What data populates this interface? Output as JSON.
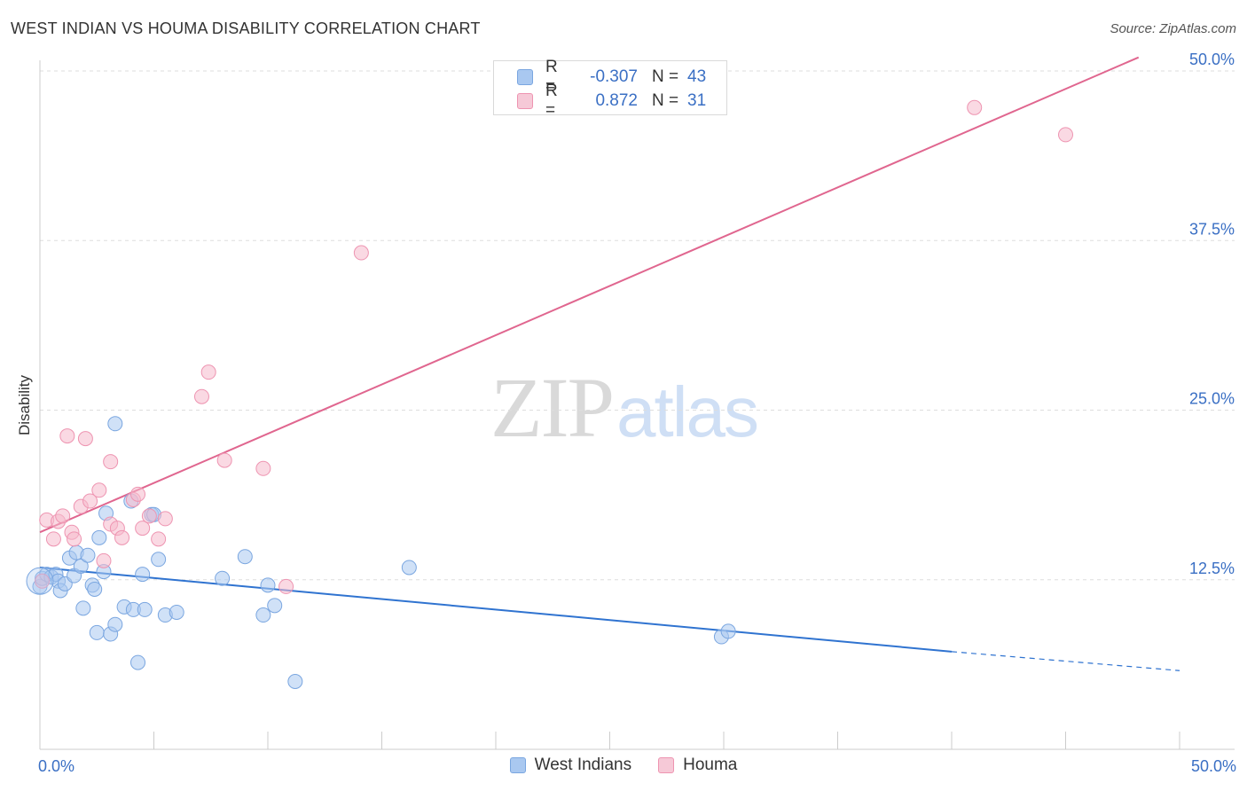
{
  "header": {
    "title": "WEST INDIAN VS HOUMA DISABILITY CORRELATION CHART",
    "source": "Source: ZipAtlas.com"
  },
  "watermark": {
    "zip": "ZIP",
    "atlas": "atlas"
  },
  "colors": {
    "blue_fill": "#a9c8f0",
    "blue_stroke": "#7aa6e0",
    "blue_line": "#2f73d0",
    "pink_fill": "#f6b9cc",
    "pink_stroke": "#ee94b1",
    "pink_line": "#e0668f",
    "grid": "#dddddd",
    "tick_label": "#3a6fc4"
  },
  "stats": {
    "rows": [
      {
        "r_label": "R =",
        "r_value": "-0.307",
        "n_label": "N =",
        "n_value": "43",
        "swatch": "blue"
      },
      {
        "r_label": "R =",
        "r_value": "0.872",
        "n_label": "N =",
        "n_value": "31",
        "swatch": "pink"
      }
    ]
  },
  "legend": {
    "west_indians": "West Indians",
    "houma": "Houma"
  },
  "chart_data": {
    "type": "scatter",
    "title": "WEST INDIAN VS HOUMA DISABILITY CORRELATION CHART",
    "xlabel": "",
    "ylabel": "Disability",
    "xlim": [
      0,
      50
    ],
    "ylim": [
      0,
      50
    ],
    "x_tick_labels": [
      "0.0%",
      "50.0%"
    ],
    "y_ticks": [
      12.5,
      25.0,
      37.5,
      50.0
    ],
    "y_tick_labels": [
      "12.5%",
      "25.0%",
      "37.5%",
      "50.0%"
    ],
    "grid": true,
    "legend_position": "bottom",
    "series": [
      {
        "name": "West Indians",
        "color": "#a9c8f0",
        "r": -0.307,
        "n": 43,
        "trend": {
          "x0": 0,
          "y0": 13.4,
          "x1": 40,
          "y1": 7.2,
          "dashed_to_x": 50,
          "dashed_to_y": 5.8
        },
        "points": [
          [
            0.0,
            12.0
          ],
          [
            0.1,
            12.6
          ],
          [
            0.3,
            12.9
          ],
          [
            0.5,
            12.7
          ],
          [
            0.7,
            12.9
          ],
          [
            0.8,
            12.4
          ],
          [
            0.9,
            11.7
          ],
          [
            1.1,
            12.2
          ],
          [
            1.3,
            14.1
          ],
          [
            1.5,
            12.8
          ],
          [
            1.6,
            14.5
          ],
          [
            1.8,
            13.5
          ],
          [
            1.9,
            10.4
          ],
          [
            2.1,
            14.3
          ],
          [
            2.3,
            12.1
          ],
          [
            2.4,
            11.8
          ],
          [
            2.5,
            8.6
          ],
          [
            2.6,
            15.6
          ],
          [
            2.8,
            13.1
          ],
          [
            2.9,
            17.4
          ],
          [
            3.1,
            8.5
          ],
          [
            3.3,
            9.2
          ],
          [
            3.3,
            24.0
          ],
          [
            3.7,
            10.5
          ],
          [
            4.0,
            18.3
          ],
          [
            4.1,
            10.3
          ],
          [
            4.3,
            6.4
          ],
          [
            4.5,
            12.9
          ],
          [
            4.6,
            10.3
          ],
          [
            4.9,
            17.3
          ],
          [
            5.0,
            17.3
          ],
          [
            5.2,
            14.0
          ],
          [
            5.5,
            9.9
          ],
          [
            6.0,
            10.1
          ],
          [
            8.0,
            12.6
          ],
          [
            9.0,
            14.2
          ],
          [
            9.8,
            9.9
          ],
          [
            10.0,
            12.1
          ],
          [
            10.3,
            10.6
          ],
          [
            11.2,
            5.0
          ],
          [
            16.2,
            13.4
          ],
          [
            29.9,
            8.3
          ],
          [
            30.2,
            8.7
          ]
        ]
      },
      {
        "name": "Houma",
        "color": "#f6b9cc",
        "r": 0.872,
        "n": 31,
        "trend": {
          "x0": 0,
          "y0": 16.0,
          "x1": 48.2,
          "y1": 51.0
        },
        "points": [
          [
            0.1,
            12.4
          ],
          [
            0.3,
            16.9
          ],
          [
            0.6,
            15.5
          ],
          [
            0.8,
            16.8
          ],
          [
            1.0,
            17.2
          ],
          [
            1.2,
            23.1
          ],
          [
            1.4,
            16.0
          ],
          [
            1.5,
            15.5
          ],
          [
            1.8,
            17.9
          ],
          [
            2.0,
            22.9
          ],
          [
            2.2,
            18.3
          ],
          [
            2.6,
            19.1
          ],
          [
            2.8,
            13.9
          ],
          [
            3.1,
            21.2
          ],
          [
            3.1,
            16.6
          ],
          [
            3.4,
            16.3
          ],
          [
            3.6,
            15.6
          ],
          [
            4.1,
            18.4
          ],
          [
            4.3,
            18.8
          ],
          [
            4.5,
            16.3
          ],
          [
            4.8,
            17.2
          ],
          [
            5.2,
            15.5
          ],
          [
            5.5,
            17.0
          ],
          [
            7.1,
            26.0
          ],
          [
            7.4,
            27.8
          ],
          [
            8.1,
            21.3
          ],
          [
            9.8,
            20.7
          ],
          [
            10.8,
            12.0
          ],
          [
            14.1,
            36.6
          ],
          [
            41.0,
            47.3
          ],
          [
            45.0,
            45.3
          ]
        ]
      }
    ]
  }
}
